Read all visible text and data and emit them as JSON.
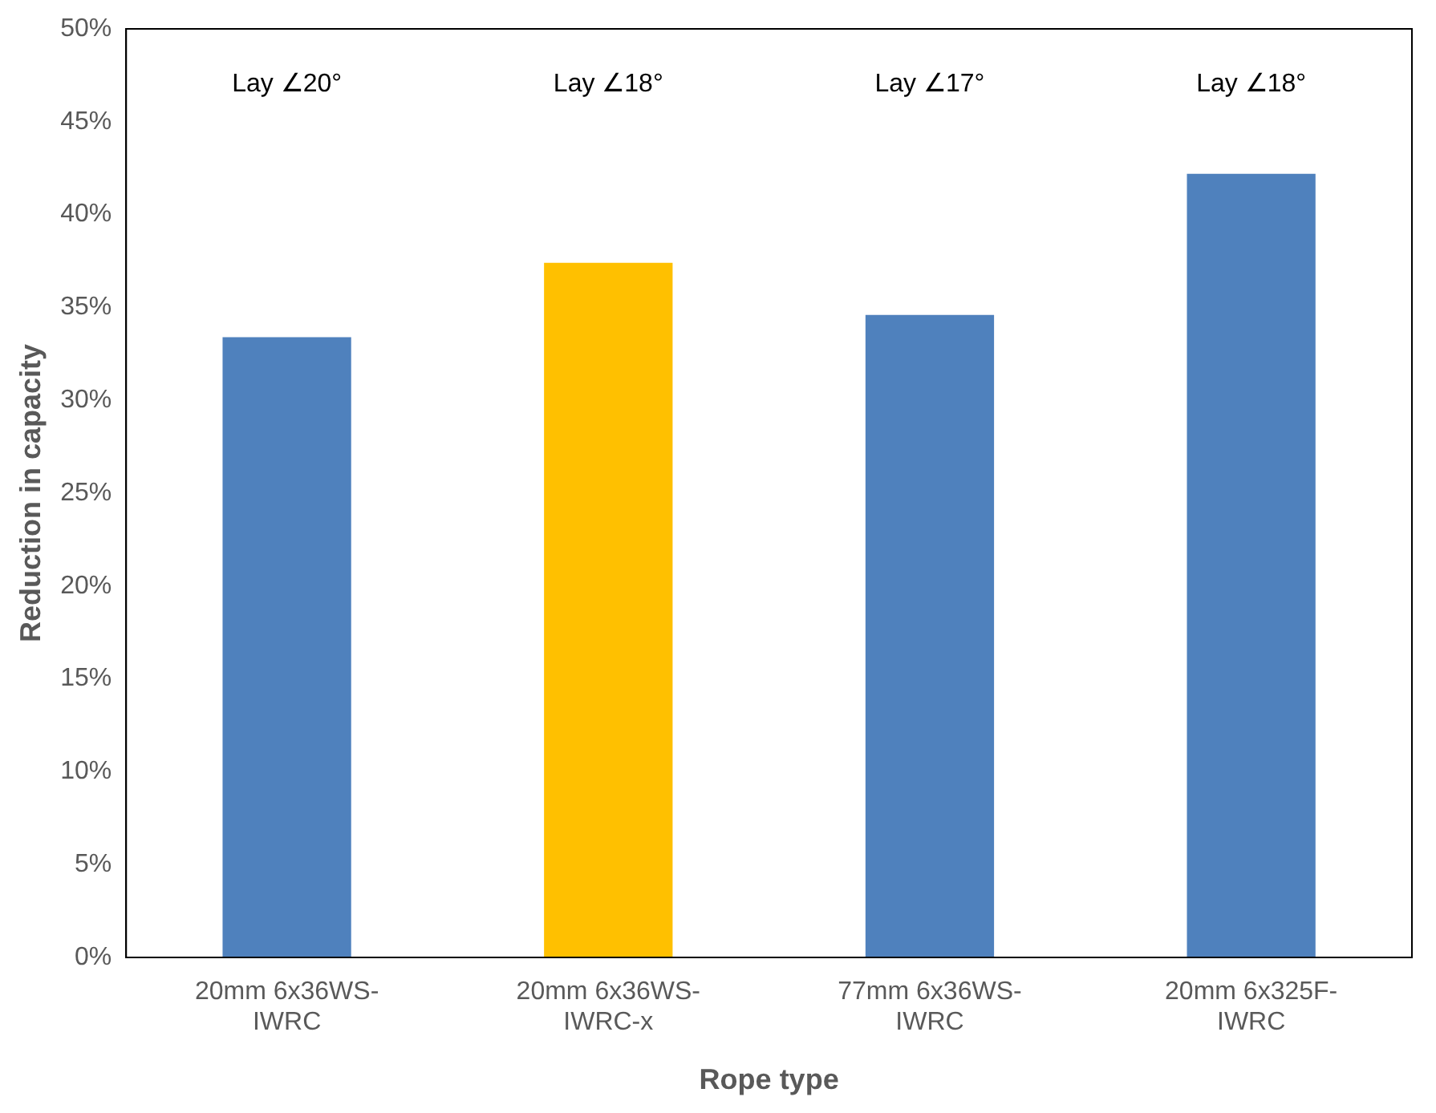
{
  "chart_data": {
    "type": "bar",
    "xlabel": "Rope type",
    "ylabel": "Reduction in capacity",
    "categories": [
      "20mm 6x36WS-IWRC",
      "20mm 6x36WS-IWRC-x",
      "77mm 6x36WS-IWRC",
      "20mm 6x325F-IWRC"
    ],
    "values": [
      33.4,
      37.4,
      34.6,
      42.2
    ],
    "colors": [
      "#4f81bd",
      "#ffc000",
      "#4f81bd",
      "#4f81bd"
    ],
    "ylim": [
      0,
      50
    ],
    "yticks": [
      {
        "value": 0,
        "label": "0%"
      },
      {
        "value": 5,
        "label": "5%"
      },
      {
        "value": 10,
        "label": "10%"
      },
      {
        "value": 15,
        "label": "15%"
      },
      {
        "value": 20,
        "label": "20%"
      },
      {
        "value": 25,
        "label": "25%"
      },
      {
        "value": 30,
        "label": "30%"
      },
      {
        "value": 35,
        "label": "35%"
      },
      {
        "value": 40,
        "label": "40%"
      },
      {
        "value": 45,
        "label": "45%"
      },
      {
        "value": 50,
        "label": "50%"
      }
    ],
    "annotations": [
      "Lay ∠20°",
      "Lay ∠18°",
      "Lay ∠17°",
      "Lay ∠18°"
    ],
    "grid": false,
    "legend": false
  }
}
